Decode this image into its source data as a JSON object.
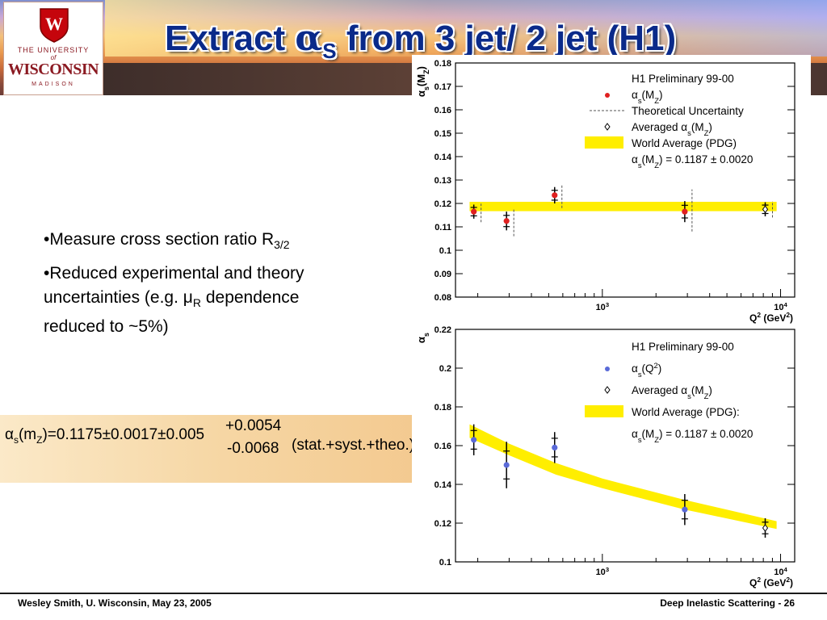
{
  "slide": {
    "title_prefix": "Extract ",
    "title_symbol": "α",
    "title_sub": "S",
    "title_suffix": " from 3 jet/ 2 jet (H1)"
  },
  "logo": {
    "line1": "THE UNIVERSITY",
    "line2": "of",
    "line3": "WISCONSIN",
    "line4": "MADISON",
    "crest_letter": "W",
    "brand_color": "#c5050c"
  },
  "bullets": {
    "b1_text": "•Measure cross section ratio R",
    "b1_sub": "3/2",
    "b2_line1": "•Reduced experimental and theory",
    "b2_line2_a": "uncertainties (e.g. ",
    "b2_mu": "μ",
    "b2_mu_sub": "R",
    "b2_line2_b": " dependence",
    "b2_line3": "reduced to ~5%)"
  },
  "formula": {
    "alpha": "α",
    "s_sub": "s",
    "open": "(m",
    "z_sub": "Z",
    "main": ")=0.1175±0.0017±0.005",
    "plus": "+0.0054",
    "minus": "-0.0068",
    "tail": "(stat.+syst.+theo.)"
  },
  "footer": {
    "left": "Wesley Smith, U. Wisconsin, May 23, 2005",
    "right": "Deep Inelastic Scattering  -  26"
  },
  "chart_data": [
    {
      "type": "scatter",
      "xscale": "log",
      "xlim": [
        150,
        12000
      ],
      "ylim": [
        0.08,
        0.18
      ],
      "ylabel_main": "α",
      "ylabel_sub": "s",
      "ylabel_arg": "(M",
      "ylabel_arg_sub": "Z",
      "ylabel_close": ")",
      "xlabel": "Q",
      "xlabel_sup": "2",
      "xlabel_unit": " (GeV",
      "xlabel_unit_sup": "2",
      "xlabel_close": ")",
      "yticks": [
        "0.08",
        "0.09",
        "0.1",
        "0.11",
        "0.12",
        "0.13",
        "0.14",
        "0.15",
        "0.16",
        "0.17",
        "0.18"
      ],
      "xtick_labels": [
        {
          "base": "10",
          "exp": "3"
        },
        {
          "base": "10",
          "exp": "4"
        }
      ],
      "legend": {
        "title": "H1 Preliminary 99-00",
        "entry1": "α",
        "entry1_rest": "(M",
        "entry1_close": ")",
        "entry2": "Theoretical Uncertainty",
        "entry3": "Averaged α",
        "entry3_rest": "(M",
        "entry3_close": ")",
        "entry4": "World Average (PDG)",
        "entry5": "α",
        "entry5_rest": "(M",
        "entry5_close": ") = 0.1187 ± 0.0020",
        "sub_s": "s",
        "sub_z": "Z"
      },
      "band": {
        "y_center": 0.1187,
        "y_half": 0.002,
        "x_from": 180,
        "x_to": 9500,
        "color": "#ffee00"
      },
      "points": [
        {
          "x": 190,
          "y": 0.1165,
          "err": 0.003,
          "theo": [
            0.112,
            0.12
          ]
        },
        {
          "x": 290,
          "y": 0.1125,
          "err": 0.004,
          "theo": [
            0.106,
            0.118
          ]
        },
        {
          "x": 540,
          "y": 0.1235,
          "err": 0.0035,
          "theo": [
            0.118,
            0.128
          ]
        },
        {
          "x": 2900,
          "y": 0.1165,
          "err": 0.0045,
          "theo": [
            0.108,
            0.126
          ]
        },
        {
          "x": 8200,
          "y": 0.1175,
          "err": 0.003,
          "theo": [
            0.114,
            0.121
          ],
          "averaged": true
        }
      ],
      "point_color": "#e02020"
    },
    {
      "type": "scatter",
      "xscale": "log",
      "xlim": [
        150,
        12000
      ],
      "ylim": [
        0.1,
        0.22
      ],
      "ylabel_main": "α",
      "ylabel_sub": "s",
      "xlabel": "Q",
      "xlabel_sup": "2",
      "xlabel_unit": " (GeV",
      "xlabel_unit_sup": "2",
      "xlabel_close": ")",
      "yticks": [
        "0.1",
        "0.12",
        "0.14",
        "0.16",
        "0.18",
        "0.2",
        "0.22"
      ],
      "xtick_labels": [
        {
          "base": "10",
          "exp": "3"
        },
        {
          "base": "10",
          "exp": "4"
        }
      ],
      "legend": {
        "title": "H1 Preliminary 99-00",
        "entry1": "α",
        "entry1_rest": "(Q",
        "entry1_sup": "2",
        "entry1_close": ")",
        "entry3": "Averaged α",
        "entry3_rest": "(M",
        "entry3_close": ")",
        "entry4": "World Average (PDG):",
        "entry5": "α",
        "entry5_rest": "(M",
        "entry5_close": ") = 0.1187 ± 0.0020",
        "sub_s": "s",
        "sub_z": "Z"
      },
      "band_curve": [
        {
          "x": 180,
          "lo": 0.164,
          "hi": 0.171
        },
        {
          "x": 300,
          "lo": 0.155,
          "hi": 0.161
        },
        {
          "x": 550,
          "lo": 0.145,
          "hi": 0.151
        },
        {
          "x": 1000,
          "lo": 0.138,
          "hi": 0.143
        },
        {
          "x": 2900,
          "lo": 0.127,
          "hi": 0.132
        },
        {
          "x": 9500,
          "lo": 0.117,
          "hi": 0.121
        }
      ],
      "band_color": "#ffee00",
      "points": [
        {
          "x": 190,
          "y": 0.163,
          "err": 0.008
        },
        {
          "x": 290,
          "y": 0.15,
          "err": 0.012
        },
        {
          "x": 540,
          "y": 0.159,
          "err": 0.008
        },
        {
          "x": 2900,
          "y": 0.127,
          "err": 0.008
        },
        {
          "x": 8200,
          "y": 0.1175,
          "err": 0.005,
          "averaged": true
        }
      ],
      "point_color": "#5a6ad8"
    }
  ]
}
